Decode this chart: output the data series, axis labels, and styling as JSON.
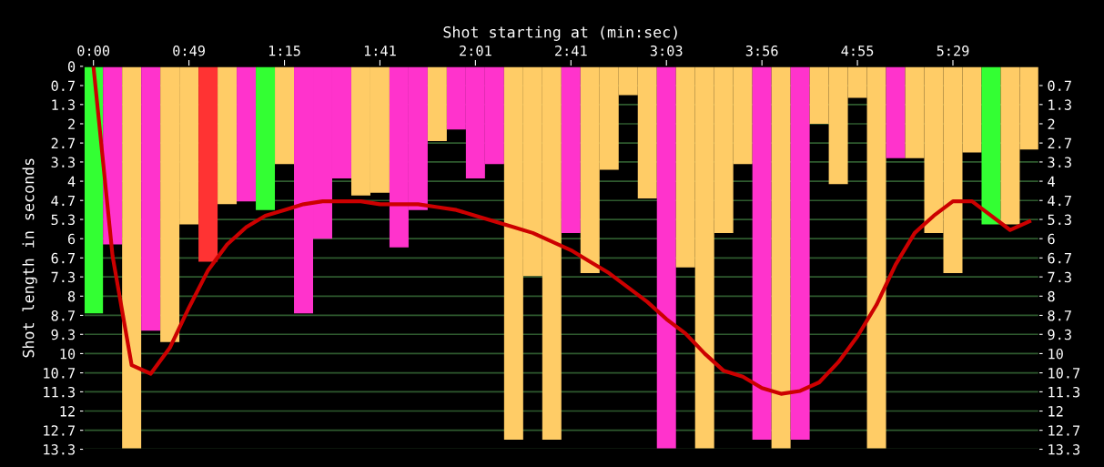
{
  "chart_data": {
    "type": "bar",
    "xlabel": "Shot starting at (min:sec)",
    "ylabel": "Shot length in seconds",
    "categories": [
      "0:00",
      null,
      null,
      null,
      null,
      "0:49",
      null,
      null,
      null,
      null,
      "1:15",
      null,
      null,
      null,
      null,
      "1:41",
      null,
      null,
      null,
      null,
      "2:01",
      null,
      null,
      null,
      null,
      "2:41",
      null,
      null,
      null,
      null,
      "3:03",
      null,
      null,
      null,
      null,
      "3:56",
      null,
      null,
      null,
      null,
      "4:55",
      null,
      null,
      null,
      null,
      "5:29",
      null,
      null,
      null,
      null
    ],
    "series": [
      {
        "colors": [
          "#33ff33",
          "#ff33cc",
          "#ffcc66",
          "#ff33cc",
          "#ffcc66",
          "#ffcc66",
          "#ff3333",
          "#ffcc66",
          "#ff33cc",
          "#33ff33",
          "#ffcc66",
          "#ff33cc",
          "#ff33cc",
          "#ff33cc",
          "#ffcc66",
          "#ffcc66",
          "#ff33cc",
          "#ff33cc",
          "#ffcc66",
          "#ff33cc",
          "#ff33cc",
          "#ff33cc",
          "#ffcc66",
          "#ffcc66",
          "#ffcc66",
          "#ff33cc",
          "#ffcc66",
          "#ffcc66",
          "#ffcc66",
          "#ffcc66",
          "#ff33cc",
          "#ffcc66",
          "#ffcc66",
          "#ffcc66",
          "#ffcc66",
          "#ff33cc",
          "#ffcc66",
          "#ff33cc",
          "#ffcc66",
          "#ffcc66",
          "#ffcc66",
          "#ffcc66",
          "#ff33cc",
          "#ffcc66",
          "#ffcc66",
          "#ffcc66",
          "#ffcc66",
          "#33ff33",
          "#ffcc66",
          "#ffcc66"
        ],
        "values": [
          8.6,
          6.2,
          13.3,
          9.2,
          9.6,
          5.5,
          6.8,
          4.8,
          4.7,
          5.0,
          3.4,
          8.6,
          6.0,
          3.9,
          4.5,
          4.4,
          6.3,
          5.0,
          2.6,
          2.2,
          3.9,
          3.4,
          13.0,
          7.3,
          13.0,
          5.8,
          7.2,
          3.6,
          1.0,
          4.6,
          13.3,
          7.0,
          13.3,
          5.8,
          3.4,
          13.0,
          13.3,
          13.0,
          2.0,
          4.1,
          1.1,
          13.3,
          3.2,
          3.2,
          5.8,
          7.2,
          3.0,
          5.5,
          5.5,
          2.9
        ]
      },
      {
        "type": "line",
        "color": "#cc0000",
        "values": [
          0.0,
          6.6,
          10.4,
          10.7,
          9.8,
          8.4,
          7.1,
          6.2,
          5.6,
          5.2,
          5.0,
          4.8,
          4.7,
          4.7,
          4.7,
          4.8,
          4.8,
          4.8,
          4.9,
          5.0,
          5.2,
          5.4,
          5.6,
          5.8,
          6.1,
          6.4,
          6.8,
          7.2,
          7.7,
          8.2,
          8.8,
          9.3,
          10.0,
          10.6,
          10.8,
          11.2,
          11.4,
          11.3,
          11.0,
          10.3,
          9.4,
          8.3,
          6.9,
          5.8,
          5.2,
          4.7,
          4.7,
          5.2,
          5.7,
          5.4
        ]
      }
    ],
    "ylim": [
      13.33,
      0
    ],
    "yticks": [
      0,
      {
        "value": 0.67,
        "label": "0.7"
      },
      {
        "value": 1.33,
        "label": "1.3"
      },
      2,
      {
        "value": 2.67,
        "label": "2.7"
      },
      {
        "value": 3.33,
        "label": "3.3"
      },
      4,
      {
        "value": 4.67,
        "label": "4.7"
      },
      {
        "value": 5.33,
        "label": "5.3"
      },
      6,
      {
        "value": 6.67,
        "label": "6.7"
      },
      {
        "value": 7.33,
        "label": "7.3"
      },
      8,
      {
        "value": 8.67,
        "label": "8.7"
      },
      {
        "value": 9.33,
        "label": "9.3"
      },
      10,
      {
        "value": 10.67,
        "label": "10.7"
      },
      {
        "value": 11.33,
        "label": "11.3"
      },
      12,
      {
        "value": 12.67,
        "label": "12.7"
      },
      {
        "value": 13.33,
        "label": "13.3"
      }
    ],
    "y2lim": [
      13.33,
      0
    ],
    "y2ticks": [
      {
        "value": 0.67,
        "label": "0.7"
      },
      {
        "value": 1.33,
        "label": "1.3"
      },
      2,
      {
        "value": 2.67,
        "label": "2.7"
      },
      {
        "value": 3.33,
        "label": "3.3"
      },
      4,
      {
        "value": 4.67,
        "label": "4.7"
      },
      {
        "value": 5.33,
        "label": "5.3"
      },
      6,
      {
        "value": 6.67,
        "label": "6.7"
      },
      {
        "value": 7.33,
        "label": "7.3"
      },
      8,
      {
        "value": 8.67,
        "label": "8.7"
      },
      {
        "value": 9.33,
        "label": "9.3"
      },
      10,
      {
        "value": 10.67,
        "label": "10.7"
      },
      {
        "value": 11.33,
        "label": "11.3"
      },
      12,
      {
        "value": 12.67,
        "label": "12.7"
      },
      {
        "value": 13.33,
        "label": "13.3"
      }
    ],
    "grid": "y",
    "marker": "none",
    "line_style": "solid"
  }
}
